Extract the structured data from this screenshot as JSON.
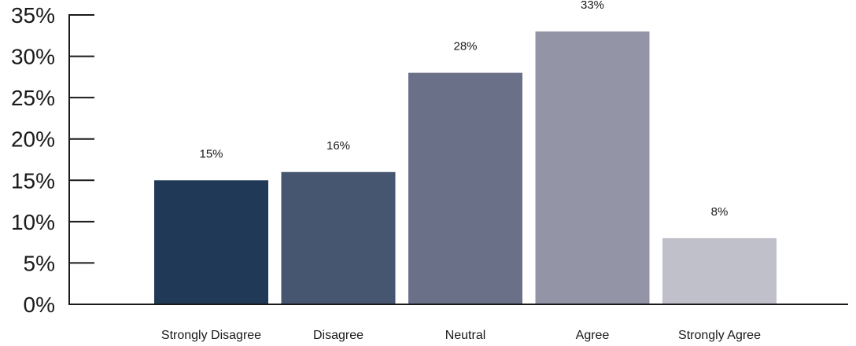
{
  "chart_data": {
    "type": "bar",
    "categories": [
      "Strongly Disagree",
      "Disagree",
      "Neutral",
      "Agree",
      "Strongly Agree"
    ],
    "values": [
      15,
      16,
      28,
      33,
      8
    ],
    "data_labels": [
      "15%",
      "16%",
      "28%",
      "33%",
      "8%"
    ],
    "y_ticks": [
      "0%",
      "5%",
      "10%",
      "15%",
      "20%",
      "25%",
      "30%",
      "35%"
    ],
    "y_tick_values": [
      0,
      5,
      10,
      15,
      20,
      25,
      30,
      35
    ],
    "ylim": [
      0,
      35
    ],
    "grid": false,
    "legend": "none",
    "bar_colors": [
      "#203957",
      "#465570",
      "#6b7089",
      "#9394a5",
      "#c0c0ca"
    ]
  }
}
